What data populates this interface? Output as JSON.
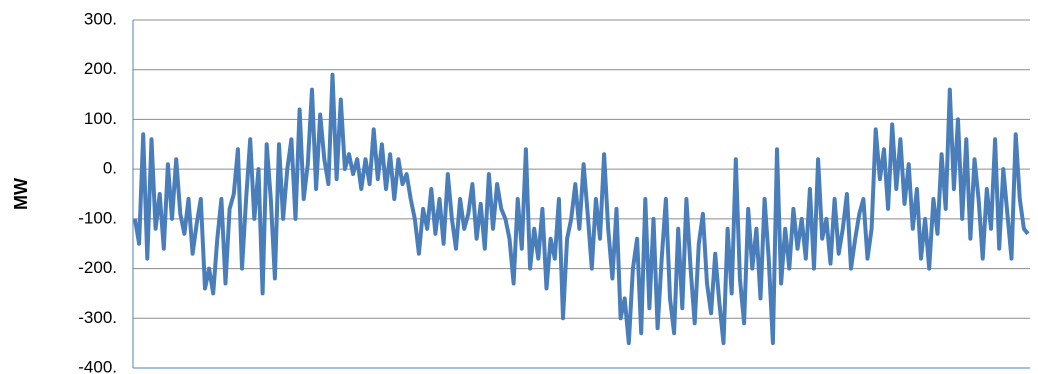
{
  "chart_data": {
    "type": "line",
    "y_label": "MW",
    "color": "#4a7ebb",
    "grid": true,
    "ylim": [
      -400,
      300
    ],
    "yticks": [
      {
        "value": -400,
        "label": "-400."
      },
      {
        "value": -300,
        "label": "-300."
      },
      {
        "value": -200,
        "label": "-200."
      },
      {
        "value": -100,
        "label": "-100."
      },
      {
        "value": 0,
        "label": "0."
      },
      {
        "value": 100,
        "label": "100."
      },
      {
        "value": 200,
        "label": "200."
      },
      {
        "value": 300,
        "label": "300."
      }
    ],
    "values": [
      -100,
      -150,
      70,
      -180,
      60,
      -120,
      -50,
      -160,
      10,
      -100,
      20,
      -90,
      -130,
      -60,
      -170,
      -110,
      -60,
      -240,
      -200,
      -250,
      -140,
      -60,
      -230,
      -80,
      -50,
      40,
      -200,
      -60,
      60,
      -100,
      0,
      -250,
      50,
      -60,
      -220,
      50,
      -100,
      0,
      60,
      -100,
      120,
      -60,
      10,
      160,
      -40,
      110,
      20,
      -30,
      190,
      -20,
      140,
      0,
      30,
      -10,
      20,
      -40,
      20,
      -30,
      80,
      -20,
      50,
      -40,
      30,
      -60,
      20,
      -30,
      -10,
      -60,
      -100,
      -170,
      -80,
      -120,
      -40,
      -130,
      -60,
      -150,
      -10,
      -100,
      -160,
      -60,
      -120,
      -90,
      -30,
      -140,
      -70,
      -160,
      -10,
      -120,
      -30,
      -80,
      -100,
      -140,
      -230,
      -60,
      -160,
      40,
      -200,
      -120,
      -180,
      -80,
      -240,
      -140,
      -180,
      -60,
      -300,
      -140,
      -100,
      -30,
      -120,
      10,
      -90,
      -200,
      -60,
      -140,
      30,
      -120,
      -220,
      -80,
      -300,
      -260,
      -350,
      -200,
      -140,
      -330,
      -60,
      -280,
      -100,
      -320,
      -180,
      -60,
      -260,
      -330,
      -120,
      -280,
      -60,
      -200,
      -310,
      -150,
      -90,
      -230,
      -290,
      -170,
      -270,
      -350,
      -120,
      -250,
      20,
      -220,
      -310,
      -80,
      -200,
      -120,
      -260,
      -60,
      -180,
      -350,
      40,
      -230,
      -120,
      -200,
      -80,
      -160,
      -100,
      -180,
      -40,
      -200,
      20,
      -140,
      -100,
      -190,
      -60,
      -170,
      -120,
      -50,
      -200,
      -140,
      -90,
      -60,
      -180,
      -120,
      80,
      -20,
      40,
      -80,
      90,
      -40,
      60,
      -70,
      10,
      -120,
      -40,
      -180,
      -100,
      -200,
      -60,
      -130,
      30,
      -80,
      160,
      -40,
      100,
      -100,
      60,
      -140,
      20,
      -60,
      -180,
      -40,
      -120,
      60,
      -160,
      0,
      -90,
      -180,
      70,
      -60,
      -120,
      -130
    ]
  }
}
